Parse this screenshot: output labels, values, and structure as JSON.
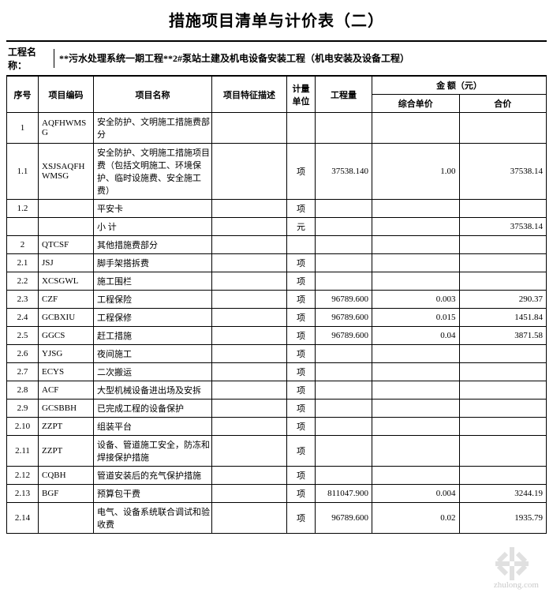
{
  "title": "措施项目清单与计价表（二）",
  "project_label": "工程名称：",
  "project_name": "**污水处理系统一期工程**2#泵站土建及机电设备安装工程（机电安装及设备工程）",
  "header": {
    "seq": "序号",
    "code": "项目编码",
    "name": "项目名称",
    "desc": "项目特征描述",
    "unit": "计量单位",
    "qty": "工程量",
    "amount_group": "金 额（元）",
    "unit_price": "综合单价",
    "total": "合价"
  },
  "rows": [
    {
      "seq": "1",
      "code": "AQFHWMSG",
      "name": "安全防护、文明施工措施费部分",
      "desc": "",
      "unit": "",
      "qty": "",
      "price": "",
      "total": ""
    },
    {
      "seq": "1.1",
      "code": "XSJSAQFHWMSG",
      "name": "安全防护、文明施工措施项目费（包括文明施工、环境保护、临时设施费、安全施工费）",
      "desc": "",
      "unit": "项",
      "qty": "37538.140",
      "price": "1.00",
      "total": "37538.14"
    },
    {
      "seq": "1.2",
      "code": "",
      "name": "平安卡",
      "desc": "",
      "unit": "项",
      "qty": "",
      "price": "",
      "total": ""
    },
    {
      "seq": "",
      "code": "",
      "name": "小  计",
      "desc": "",
      "unit": "元",
      "qty": "",
      "price": "",
      "total": "37538.14"
    },
    {
      "seq": "2",
      "code": "QTCSF",
      "name": "其他措施费部分",
      "desc": "",
      "unit": "",
      "qty": "",
      "price": "",
      "total": ""
    },
    {
      "seq": "2.1",
      "code": "JSJ",
      "name": "脚手架搭拆费",
      "desc": "",
      "unit": "项",
      "qty": "",
      "price": "",
      "total": ""
    },
    {
      "seq": "2.2",
      "code": "XCSGWL",
      "name": "施工围栏",
      "desc": "",
      "unit": "项",
      "qty": "",
      "price": "",
      "total": ""
    },
    {
      "seq": "2.3",
      "code": "CZF",
      "name": "工程保险",
      "desc": "",
      "unit": "项",
      "qty": "96789.600",
      "price": "0.003",
      "total": "290.37"
    },
    {
      "seq": "2.4",
      "code": "GCBXIU",
      "name": "工程保修",
      "desc": "",
      "unit": "项",
      "qty": "96789.600",
      "price": "0.015",
      "total": "1451.84"
    },
    {
      "seq": "2.5",
      "code": "GGCS",
      "name": "赶工措施",
      "desc": "",
      "unit": "项",
      "qty": "96789.600",
      "price": "0.04",
      "total": "3871.58"
    },
    {
      "seq": "2.6",
      "code": "YJSG",
      "name": "夜间施工",
      "desc": "",
      "unit": "项",
      "qty": "",
      "price": "",
      "total": ""
    },
    {
      "seq": "2.7",
      "code": "ECYS",
      "name": "二次搬运",
      "desc": "",
      "unit": "项",
      "qty": "",
      "price": "",
      "total": ""
    },
    {
      "seq": "2.8",
      "code": "ACF",
      "name": "大型机械设备进出场及安拆",
      "desc": "",
      "unit": "项",
      "qty": "",
      "price": "",
      "total": ""
    },
    {
      "seq": "2.9",
      "code": "GCSBBH",
      "name": "已完成工程的设备保护",
      "desc": "",
      "unit": "项",
      "qty": "",
      "price": "",
      "total": ""
    },
    {
      "seq": "2.10",
      "code": "ZZPT",
      "name": "组装平台",
      "desc": "",
      "unit": "项",
      "qty": "",
      "price": "",
      "total": ""
    },
    {
      "seq": "2.11",
      "code": "ZZPT",
      "name": "设备、管道施工安全，防冻和焊接保护措施",
      "desc": "",
      "unit": "项",
      "qty": "",
      "price": "",
      "total": ""
    },
    {
      "seq": "2.12",
      "code": "CQBH",
      "name": "管道安装后的充气保护措施",
      "desc": "",
      "unit": "项",
      "qty": "",
      "price": "",
      "total": ""
    },
    {
      "seq": "2.13",
      "code": "BGF",
      "name": "预算包干费",
      "desc": "",
      "unit": "项",
      "qty": "811047.900",
      "price": "0.004",
      "total": "3244.19"
    },
    {
      "seq": "2.14",
      "code": "",
      "name": "电气、设备系统联合调试和验收费",
      "desc": "",
      "unit": "项",
      "qty": "96789.600",
      "price": "0.02",
      "total": "1935.79"
    }
  ],
  "watermark_text": "zhulong.com"
}
